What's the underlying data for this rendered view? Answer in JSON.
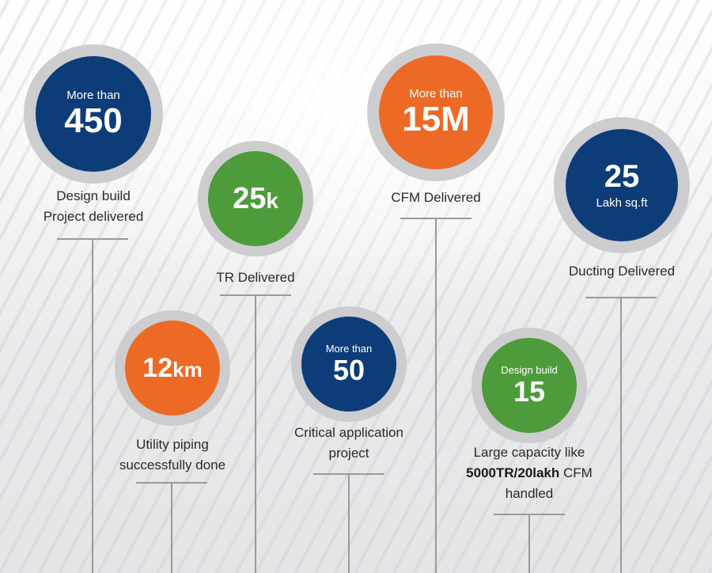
{
  "items": [
    {
      "prefix": "More than",
      "value": "450",
      "unit": "",
      "suffix": "",
      "caption_lines": [
        "Design build",
        "Project delivered"
      ]
    },
    {
      "prefix": "",
      "value": "25",
      "unit": "k",
      "suffix": "",
      "caption_lines": [
        "TR Delivered"
      ]
    },
    {
      "prefix": "More than",
      "value": "15M",
      "unit": "",
      "suffix": "",
      "caption_lines": [
        "CFM Delivered"
      ]
    },
    {
      "prefix": "",
      "value": "25",
      "unit": "",
      "suffix": "Lakh sq.ft",
      "caption_lines": [
        "Ducting Delivered"
      ]
    },
    {
      "prefix": "",
      "value": "12",
      "unit": "km",
      "suffix": "",
      "caption_lines": [
        "Utility piping",
        "successfully done"
      ]
    },
    {
      "prefix": "More than",
      "value": "50",
      "unit": "",
      "suffix": "",
      "caption_lines": [
        "Critical application",
        "project"
      ]
    },
    {
      "prefix": "Design build",
      "value": "15",
      "unit": "",
      "suffix": "",
      "caption_lines": [
        "Large capacity like"
      ],
      "caption_bold": "5000TR/20lakh",
      "caption_after_bold": " CFM",
      "caption_last": "handled"
    }
  ],
  "colors": {
    "navy": "#0d3d78",
    "orange": "#ec6a25",
    "green": "#4d9b3a",
    "ring": "#cdcdcf",
    "line": "#9a9a9c"
  }
}
